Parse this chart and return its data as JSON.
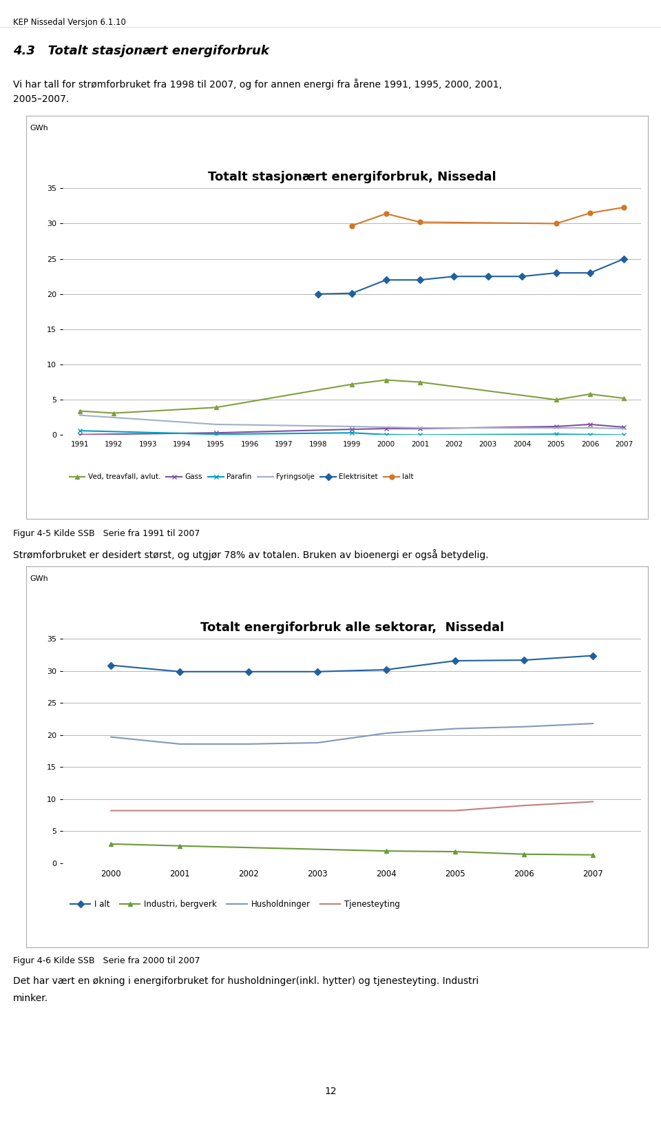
{
  "page_header": "KEP Nissedal Versjon 6.1.10",
  "section_title": "4.3   Totalt stasjonært energiforbruk",
  "intro_text_line1": "Vi har tall for strømforbruket fra 1998 til 2007, og for annen energi fra årene 1991, 1995, 2000, 2001,",
  "intro_text_line2": "2005–2007.",
  "chart1": {
    "title": "Totalt stasjonært energiforbruk, Nissedal",
    "ylabel": "GWh",
    "ylim": [
      0,
      35
    ],
    "yticks": [
      0,
      5,
      10,
      15,
      20,
      25,
      30,
      35
    ],
    "years": [
      1991,
      1992,
      1993,
      1994,
      1995,
      1996,
      1997,
      1998,
      1999,
      2000,
      2001,
      2002,
      2003,
      2004,
      2005,
      2006,
      2007
    ],
    "series": {
      "Ved, treavfall, avlut.": {
        "color": "#7f9f3f",
        "marker": "^",
        "data": {
          "1991": 3.4,
          "1992": 3.1,
          "1995": 3.9,
          "1999": 7.2,
          "2000": 7.8,
          "2001": 7.5,
          "2005": 5.0,
          "2006": 5.8,
          "2007": 5.2
        }
      },
      "Gass": {
        "color": "#7f50a0",
        "marker": "x",
        "data": {
          "1991": 0.05,
          "1995": 0.3,
          "1999": 0.8,
          "2000": 0.9,
          "2001": 0.9,
          "2005": 1.2,
          "2006": 1.5,
          "2007": 1.1
        }
      },
      "Parafin": {
        "color": "#00a0c0",
        "marker": "x",
        "data": {
          "1991": 0.6,
          "1995": 0.1,
          "1999": 0.3,
          "2000": 0.05,
          "2001": 0.0,
          "2005": 0.1,
          "2006": 0.05,
          "2007": 0.0
        }
      },
      "Fyringsolje": {
        "color": "#9fb0c8",
        "marker": null,
        "data": {
          "1991": 2.8,
          "1995": 1.5,
          "1999": 1.2,
          "2000": 1.1,
          "2001": 1.0,
          "2005": 1.0,
          "2006": 1.0,
          "2007": 0.9
        }
      },
      "Elektrisitet": {
        "color": "#2060a0",
        "marker": "D",
        "data": {
          "1998": 20.0,
          "1999": 20.1,
          "2000": 22.0,
          "2001": 22.0,
          "2002": 22.5,
          "2003": 22.5,
          "2004": 22.5,
          "2005": 23.0,
          "2006": 23.0,
          "2007": 25.0
        }
      },
      "Ialt": {
        "color": "#d07828",
        "marker": "o",
        "data": {
          "1999": 29.7,
          "2000": 31.4,
          "2001": 30.2,
          "2005": 30.0,
          "2006": 31.5,
          "2007": 32.3
        }
      }
    },
    "legend_labels": [
      "Ved, treavfall, avlut.",
      "Gass",
      "Parafin",
      "Fyringsolje",
      "Elektrisitet",
      "Ialt"
    ]
  },
  "figur4_5_text": "Figur 4-5 Kilde SSB   Serie fra 1991 til 2007",
  "description1": "Strømforbruket er desidert størst, og utgjør 78% av totalen. Bruken av bioenergi er også betydelig.",
  "chart2": {
    "title": "Totalt energiforbruk alle sektorar,  Nissedal",
    "ylabel": "GWh",
    "ylim": [
      0,
      35
    ],
    "yticks": [
      0,
      5,
      10,
      15,
      20,
      25,
      30,
      35
    ],
    "years": [
      2000,
      2001,
      2002,
      2003,
      2004,
      2005,
      2006,
      2007
    ],
    "series": {
      "I alt": {
        "color": "#2060a0",
        "marker": "D",
        "data": [
          30.9,
          29.9,
          29.9,
          29.9,
          30.2,
          31.6,
          31.7,
          32.4
        ]
      },
      "Industri, bergverk": {
        "color": "#6a9a38",
        "marker": "^",
        "data": [
          3.0,
          2.7,
          null,
          null,
          1.9,
          1.8,
          1.4,
          1.3
        ]
      },
      "Husholdninger": {
        "color": "#8098b8",
        "marker": null,
        "data": [
          19.7,
          18.6,
          18.6,
          18.8,
          20.3,
          21.0,
          21.3,
          21.8
        ]
      },
      "Tjenesteyting": {
        "color": "#c08080",
        "marker": null,
        "data": [
          8.2,
          8.2,
          8.2,
          8.2,
          8.2,
          8.2,
          9.0,
          9.6
        ]
      }
    }
  },
  "figur4_6_text": "Figur 4-6 Kilde SSB   Serie fra 2000 til 2007",
  "description2_line1": "Det har vært en økning i energiforbruket for husholdninger(inkl. hytter) og tjenesteyting. Industri",
  "description2_line2": "minker.",
  "page_number": "12"
}
